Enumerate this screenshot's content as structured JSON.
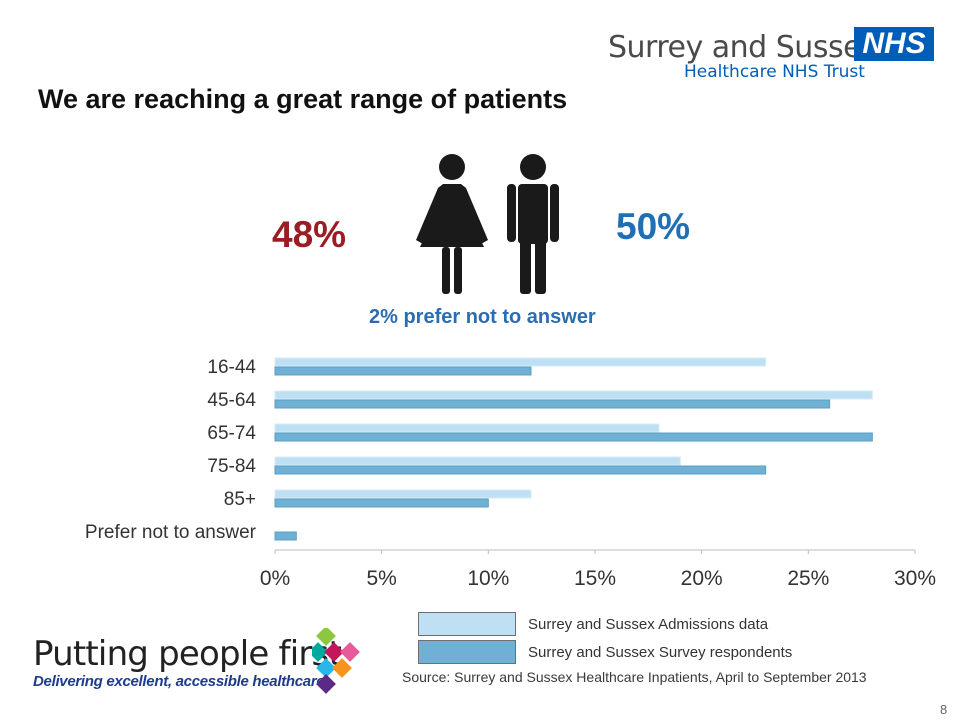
{
  "header": {
    "org_name": "Surrey and Sussex",
    "nhs_badge": "NHS",
    "trust_name": "Healthcare NHS Trust",
    "title": "We are reaching a great range of patients"
  },
  "gender": {
    "female_pct": "48%",
    "male_pct": "50%",
    "prefer_note": "2% prefer not to answer",
    "female_color": "#9b1c22",
    "male_color": "#1f6fb5",
    "icon": "female-male-people-icon"
  },
  "chart_data": {
    "type": "bar",
    "orientation": "horizontal",
    "categories": [
      "16-44",
      "45-64",
      "65-74",
      "75-84",
      "85+",
      "Prefer not to answer"
    ],
    "series": [
      {
        "name": "Surrey and Sussex Admissions data",
        "values": [
          23,
          28,
          18,
          19,
          12,
          0
        ],
        "color": "#bfe0f3"
      },
      {
        "name": "Surrey and Sussex Survey respondents",
        "values": [
          12,
          26,
          28,
          23,
          10,
          1
        ],
        "color": "#6fb0d4"
      }
    ],
    "xlim": [
      0,
      30
    ],
    "x_ticks": [
      0,
      5,
      10,
      15,
      20,
      25,
      30
    ],
    "x_tick_labels": [
      "0%",
      "5%",
      "10%",
      "15%",
      "20%",
      "25%",
      "30%"
    ],
    "grid": false,
    "legend_position": "bottom-center"
  },
  "footer": {
    "source": "Source: Surrey and Sussex Healthcare Inpatients, April to September 2013",
    "tagline": "Putting people first",
    "subtagline": "Delivering excellent, accessible healthcare",
    "page_number": "8"
  }
}
